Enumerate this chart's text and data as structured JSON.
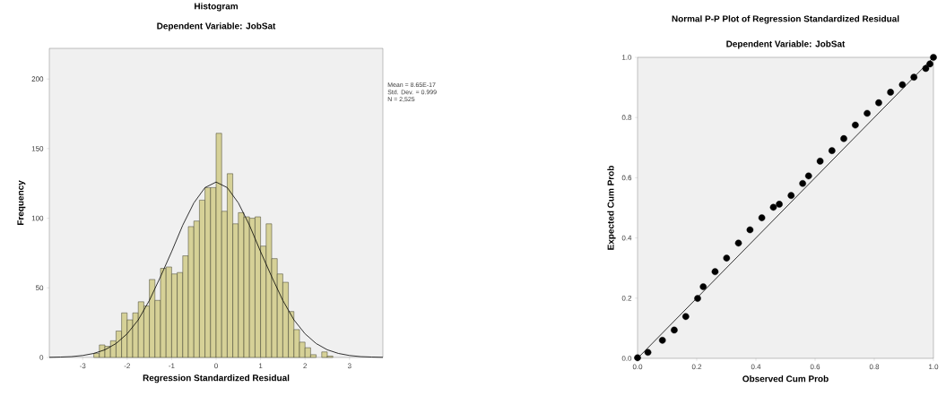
{
  "chart_data": [
    {
      "type": "histogram",
      "title": "Histogram",
      "subtitle": "Dependent Variable: JobSat",
      "xlabel": "Regression Standardized Residual",
      "ylabel": "Frequency",
      "bins": [
        -2.75,
        -2.625,
        -2.5,
        -2.375,
        -2.25,
        -2.125,
        -2.0,
        -1.875,
        -1.75,
        -1.625,
        -1.5,
        -1.375,
        -1.25,
        -1.125,
        -1.0,
        -0.875,
        -0.75,
        -0.625,
        -0.5,
        -0.375,
        -0.25,
        -0.125,
        0,
        0.125,
        0.25,
        0.375,
        0.5,
        0.625,
        0.75,
        0.875,
        1.0,
        1.125,
        1.25,
        1.375,
        1.5,
        1.625,
        1.75,
        1.875,
        2.0,
        2.125,
        2.25,
        2.375,
        2.5,
        2.625
      ],
      "values": [
        3,
        9,
        8,
        12,
        19,
        32,
        27,
        32,
        40,
        37,
        56,
        41,
        64,
        65,
        60,
        61,
        73,
        94,
        98,
        113,
        122,
        122,
        161,
        105,
        132,
        96,
        104,
        101,
        100,
        101,
        80,
        96,
        71,
        60,
        54,
        33,
        20,
        11,
        7,
        2,
        0,
        4,
        1
      ],
      "color": "#d6d197",
      "series": [
        {
          "type": "line",
          "color": "#000000",
          "x": [
            -3.75,
            -3.5,
            -3.25,
            -3.0,
            -2.75,
            -2.5,
            -2.25,
            -2.0,
            -1.75,
            -1.5,
            -1.25,
            -1.0,
            -0.75,
            -0.5,
            -0.25,
            0,
            0.25,
            0.5,
            0.75,
            1.0,
            1.25,
            1.5,
            1.75,
            2.0,
            2.25,
            2.5,
            2.75,
            3.0,
            3.25,
            3.5,
            3.75
          ],
          "values": [
            0.1,
            0.3,
            0.6,
            1.4,
            2.9,
            5.5,
            10,
            17,
            27,
            41,
            58,
            76,
            95,
            111,
            122,
            126,
            122,
            111,
            95,
            76,
            58,
            41,
            27,
            17,
            10,
            5.5,
            2.9,
            1.4,
            0.6,
            0.3,
            0.1
          ]
        }
      ],
      "xlim": [
        -3.75,
        3.75
      ],
      "ylim": [
        0,
        222
      ],
      "xticks": [
        -3,
        -2,
        -1,
        0,
        1,
        2,
        3
      ],
      "yticks": [
        0,
        50,
        100,
        150,
        200
      ],
      "annotations": [
        "Mean = 8.65E-17",
        "Std. Dev. = 0.999",
        "N = 2,525"
      ]
    },
    {
      "type": "scatter",
      "title": "Normal P-P Plot of Regression Standardized Residual",
      "subtitle": "Dependent Variable: JobSat",
      "xlabel": "Observed Cum Prob",
      "ylabel": "Expected Cum Prob",
      "series": [
        {
          "marker": "circle",
          "color": "#000000",
          "x": [
            0,
            0.035,
            0.084,
            0.124,
            0.163,
            0.203,
            0.222,
            0.262,
            0.301,
            0.341,
            0.38,
            0.42,
            0.459,
            0.479,
            0.519,
            0.558,
            0.578,
            0.617,
            0.657,
            0.697,
            0.736,
            0.776,
            0.815,
            0.855,
            0.895,
            0.934,
            0.974,
            0.988,
            1
          ],
          "values": [
            0.002,
            0.02,
            0.06,
            0.094,
            0.139,
            0.199,
            0.238,
            0.288,
            0.333,
            0.383,
            0.427,
            0.467,
            0.502,
            0.512,
            0.541,
            0.581,
            0.606,
            0.655,
            0.69,
            0.73,
            0.775,
            0.814,
            0.849,
            0.884,
            0.909,
            0.934,
            0.963,
            0.978,
            1
          ]
        },
        {
          "type": "line",
          "color": "#000000",
          "x": [
            0,
            1
          ],
          "values": [
            0,
            1
          ]
        }
      ],
      "xlim": [
        0,
        1
      ],
      "ylim": [
        0,
        1
      ],
      "xticks": [
        {
          "value": 0,
          "label": "0.0"
        },
        {
          "value": 0.2,
          "label": "0.2"
        },
        {
          "value": 0.4,
          "label": "0.4"
        },
        {
          "value": 0.6,
          "label": "0.6"
        },
        {
          "value": 0.8,
          "label": "0.8"
        },
        {
          "value": 1,
          "label": "1.0"
        }
      ],
      "yticks": [
        {
          "value": 0,
          "label": "0.0"
        },
        {
          "value": 0.2,
          "label": "0.2"
        },
        {
          "value": 0.4,
          "label": "0.4"
        },
        {
          "value": 0.6,
          "label": "0.6"
        },
        {
          "value": 0.8,
          "label": "0.8"
        },
        {
          "value": 1,
          "label": "1.0"
        }
      ]
    }
  ]
}
